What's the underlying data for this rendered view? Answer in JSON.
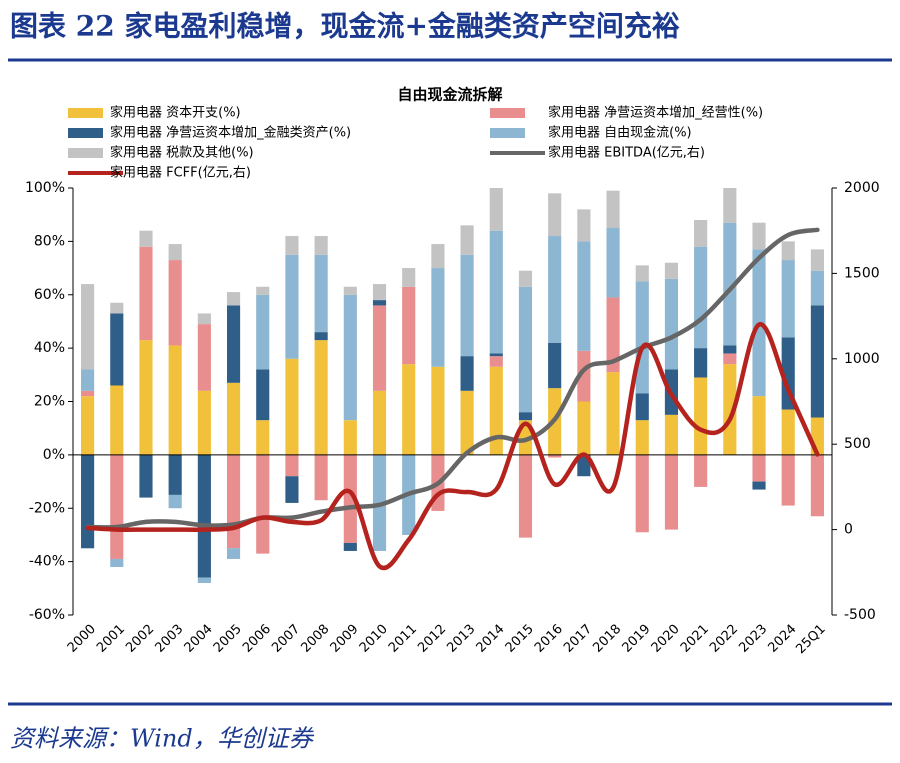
{
  "header": {
    "title": "图表 22   家电盈利稳增，现金流+金融类资产空间充裕"
  },
  "source": "资料来源：Wind，华创证券",
  "chart_data": {
    "type": "bar",
    "stacked": true,
    "title": "自由现金流拆解",
    "categories": [
      "2000",
      "2001",
      "2002",
      "2003",
      "2004",
      "2005",
      "2006",
      "2007",
      "2008",
      "2009",
      "2010",
      "2011",
      "2012",
      "2013",
      "2014",
      "2015",
      "2016",
      "2017",
      "2018",
      "2019",
      "2020",
      "2021",
      "2022",
      "2023",
      "2024",
      "25Q1"
    ],
    "ylim": [
      -60,
      100
    ],
    "yticks": [
      {
        "value": -60,
        "label": "-60%"
      },
      {
        "value": -40,
        "label": "-40%"
      },
      {
        "value": -20,
        "label": "-20%"
      },
      {
        "value": 0,
        "label": "0%"
      },
      {
        "value": 20,
        "label": "20%"
      },
      {
        "value": 40,
        "label": "40%"
      },
      {
        "value": 60,
        "label": "60%"
      },
      {
        "value": 80,
        "label": "80%"
      },
      {
        "value": 100,
        "label": "100%"
      }
    ],
    "y2lim": [
      -500,
      2000
    ],
    "y2ticks": [
      -500,
      0,
      500,
      1000,
      1500,
      2000
    ],
    "series": [
      {
        "name": "家用电器 资本开支(%)",
        "type": "bar",
        "color": "#f2c13b",
        "values": [
          22,
          26,
          43,
          41,
          24,
          27,
          13,
          36,
          43,
          13,
          24,
          34,
          33,
          24,
          33,
          13,
          25,
          20,
          31,
          13,
          15,
          29,
          34,
          22,
          17,
          14
        ]
      },
      {
        "name": "家用电器 净营运资本增加_经营性(%)",
        "type": "bar",
        "color": "#e88e8e",
        "values": [
          2,
          -39,
          35,
          32,
          25,
          -35,
          -37,
          -8,
          -17,
          -33,
          32,
          29,
          -21,
          0,
          4,
          -31,
          -1,
          19,
          28,
          -29,
          -28,
          -12,
          4,
          -10,
          -19,
          -23
        ]
      },
      {
        "name": "家用电器 净营运资本增加_金融类资产(%)",
        "type": "bar",
        "color": "#2f5e88",
        "values": [
          -35,
          27,
          -16,
          -15,
          -46,
          29,
          19,
          -10,
          3,
          -3,
          2,
          0,
          0,
          13,
          1,
          3,
          17,
          -8,
          0,
          10,
          17,
          11,
          3,
          -3,
          27,
          42
        ]
      },
      {
        "name": "家用电器 自由现金流(%)",
        "type": "bar",
        "color": "#8cb6d2",
        "values": [
          8,
          -3,
          0,
          -5,
          -2,
          -4,
          28,
          39,
          29,
          47,
          -36,
          -30,
          37,
          38,
          46,
          47,
          40,
          41,
          26,
          42,
          34,
          38,
          46,
          55,
          29,
          13
        ]
      },
      {
        "name": "家用电器 税款及其他(%)",
        "type": "bar",
        "color": "#c3c3c3",
        "values": [
          32,
          4,
          6,
          6,
          4,
          5,
          3,
          7,
          7,
          3,
          6,
          7,
          9,
          11,
          16,
          6,
          16,
          12,
          14,
          6,
          6,
          10,
          13,
          10,
          7,
          8
        ]
      },
      {
        "name": "家用电器 EBITDA(亿元,右)",
        "type": "line",
        "axis": "y2",
        "color": "#666666",
        "values": [
          15,
          15,
          45,
          45,
          25,
          30,
          70,
          70,
          105,
          130,
          145,
          210,
          270,
          450,
          540,
          525,
          645,
          935,
          985,
          1065,
          1125,
          1230,
          1405,
          1590,
          1725,
          1755
        ]
      },
      {
        "name": "家用电器 FCFF(亿元,右)",
        "type": "line",
        "axis": "y2",
        "color": "#b5231e",
        "values": [
          10,
          0,
          0,
          0,
          0,
          10,
          70,
          45,
          55,
          220,
          -215,
          -60,
          205,
          220,
          235,
          620,
          265,
          440,
          245,
          1065,
          790,
          585,
          645,
          1200,
          820,
          440
        ]
      }
    ]
  }
}
